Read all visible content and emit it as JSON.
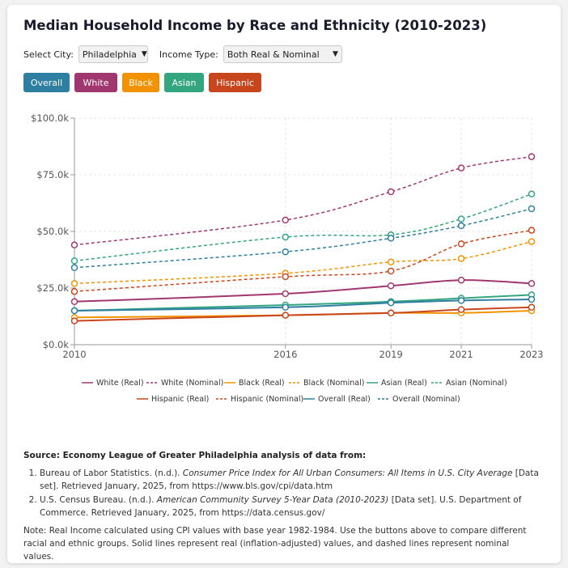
{
  "page": {
    "title": "Median Household Income by Race and Ethnicity (2010-2023)",
    "city_label": "Select City:",
    "city_value": "Philadelphia",
    "income_label": "Income Type:",
    "income_value": "Both Real & Nominal",
    "buttons": [
      {
        "label": "Overall",
        "color": "#2e7fa1"
      },
      {
        "label": "White",
        "color": "#a0386f"
      },
      {
        "label": "Black",
        "color": "#f39200"
      },
      {
        "label": "Asian",
        "color": "#34a67f"
      },
      {
        "label": "Hispanic",
        "color": "#c8461e"
      }
    ]
  },
  "source": {
    "heading": "Source: Economy League of Greater Philadelphia analysis of data from:",
    "refs": [
      {
        "pre": "Bureau of Labor Statistics. (n.d.). ",
        "ital": "Consumer Price Index for All Urban Consumers: All Items in U.S. City Average",
        "post": " [Data set]. Retrieved January, 2025, from https://www.bls.gov/cpi/data.htm"
      },
      {
        "pre": "U.S. Census Bureau. (n.d.). ",
        "ital": "American Community Survey 5-Year Data (2010-2023)",
        "post": " [Data set]. U.S. Department of Commerce. Retrieved January, 2025, from https://data.census.gov/"
      }
    ],
    "note": "Note: Real Income calculated using CPI values with base year 1982-1984. Use the buttons above to compare different racial and ethnic groups. Solid lines represent real (inflation-adjusted) values, and dashed lines represent nominal values."
  },
  "chart_data": {
    "type": "line",
    "x": [
      2010,
      2016,
      2019,
      2021,
      2023
    ],
    "x_tick_labels": [
      "2010",
      "2016",
      "2019",
      "2021",
      "2023"
    ],
    "ylim": [
      0,
      100000
    ],
    "y_ticks": [
      0,
      25000,
      50000,
      75000,
      100000
    ],
    "y_tick_labels": [
      "$0.0k",
      "$25.0k",
      "$50.0k",
      "$75.0k",
      "$100.0k"
    ],
    "grid": true,
    "legend": "bottom",
    "series": [
      {
        "name": "White (Real)",
        "color": "#a0386f",
        "dashed": false,
        "values": [
          19000,
          22500,
          26000,
          28500,
          27000
        ]
      },
      {
        "name": "White (Nominal)",
        "color": "#a0386f",
        "dashed": true,
        "values": [
          44000,
          55000,
          67500,
          78000,
          83000
        ]
      },
      {
        "name": "Black (Real)",
        "color": "#f39200",
        "dashed": false,
        "values": [
          12000,
          13000,
          14000,
          14000,
          15000
        ]
      },
      {
        "name": "Black (Nominal)",
        "color": "#f39200",
        "dashed": true,
        "values": [
          27000,
          31500,
          36500,
          38000,
          45500
        ]
      },
      {
        "name": "Asian (Real)",
        "color": "#34a67f",
        "dashed": false,
        "values": [
          15000,
          17500,
          19000,
          20500,
          22000
        ]
      },
      {
        "name": "Asian (Nominal)",
        "color": "#34a67f",
        "dashed": true,
        "values": [
          37000,
          47500,
          48500,
          55500,
          66500
        ]
      },
      {
        "name": "Hispanic (Real)",
        "color": "#c8461e",
        "dashed": false,
        "values": [
          10500,
          13000,
          14000,
          15500,
          16500
        ]
      },
      {
        "name": "Hispanic (Nominal)",
        "color": "#c8461e",
        "dashed": true,
        "values": [
          23500,
          30000,
          32500,
          44500,
          50500
        ]
      },
      {
        "name": "Overall (Real)",
        "color": "#2e7fa1",
        "dashed": false,
        "values": [
          15000,
          16500,
          18500,
          19500,
          20000
        ]
      },
      {
        "name": "Overall (Nominal)",
        "color": "#2e7fa1",
        "dashed": true,
        "values": [
          34000,
          41000,
          47000,
          52500,
          60000
        ]
      }
    ]
  }
}
